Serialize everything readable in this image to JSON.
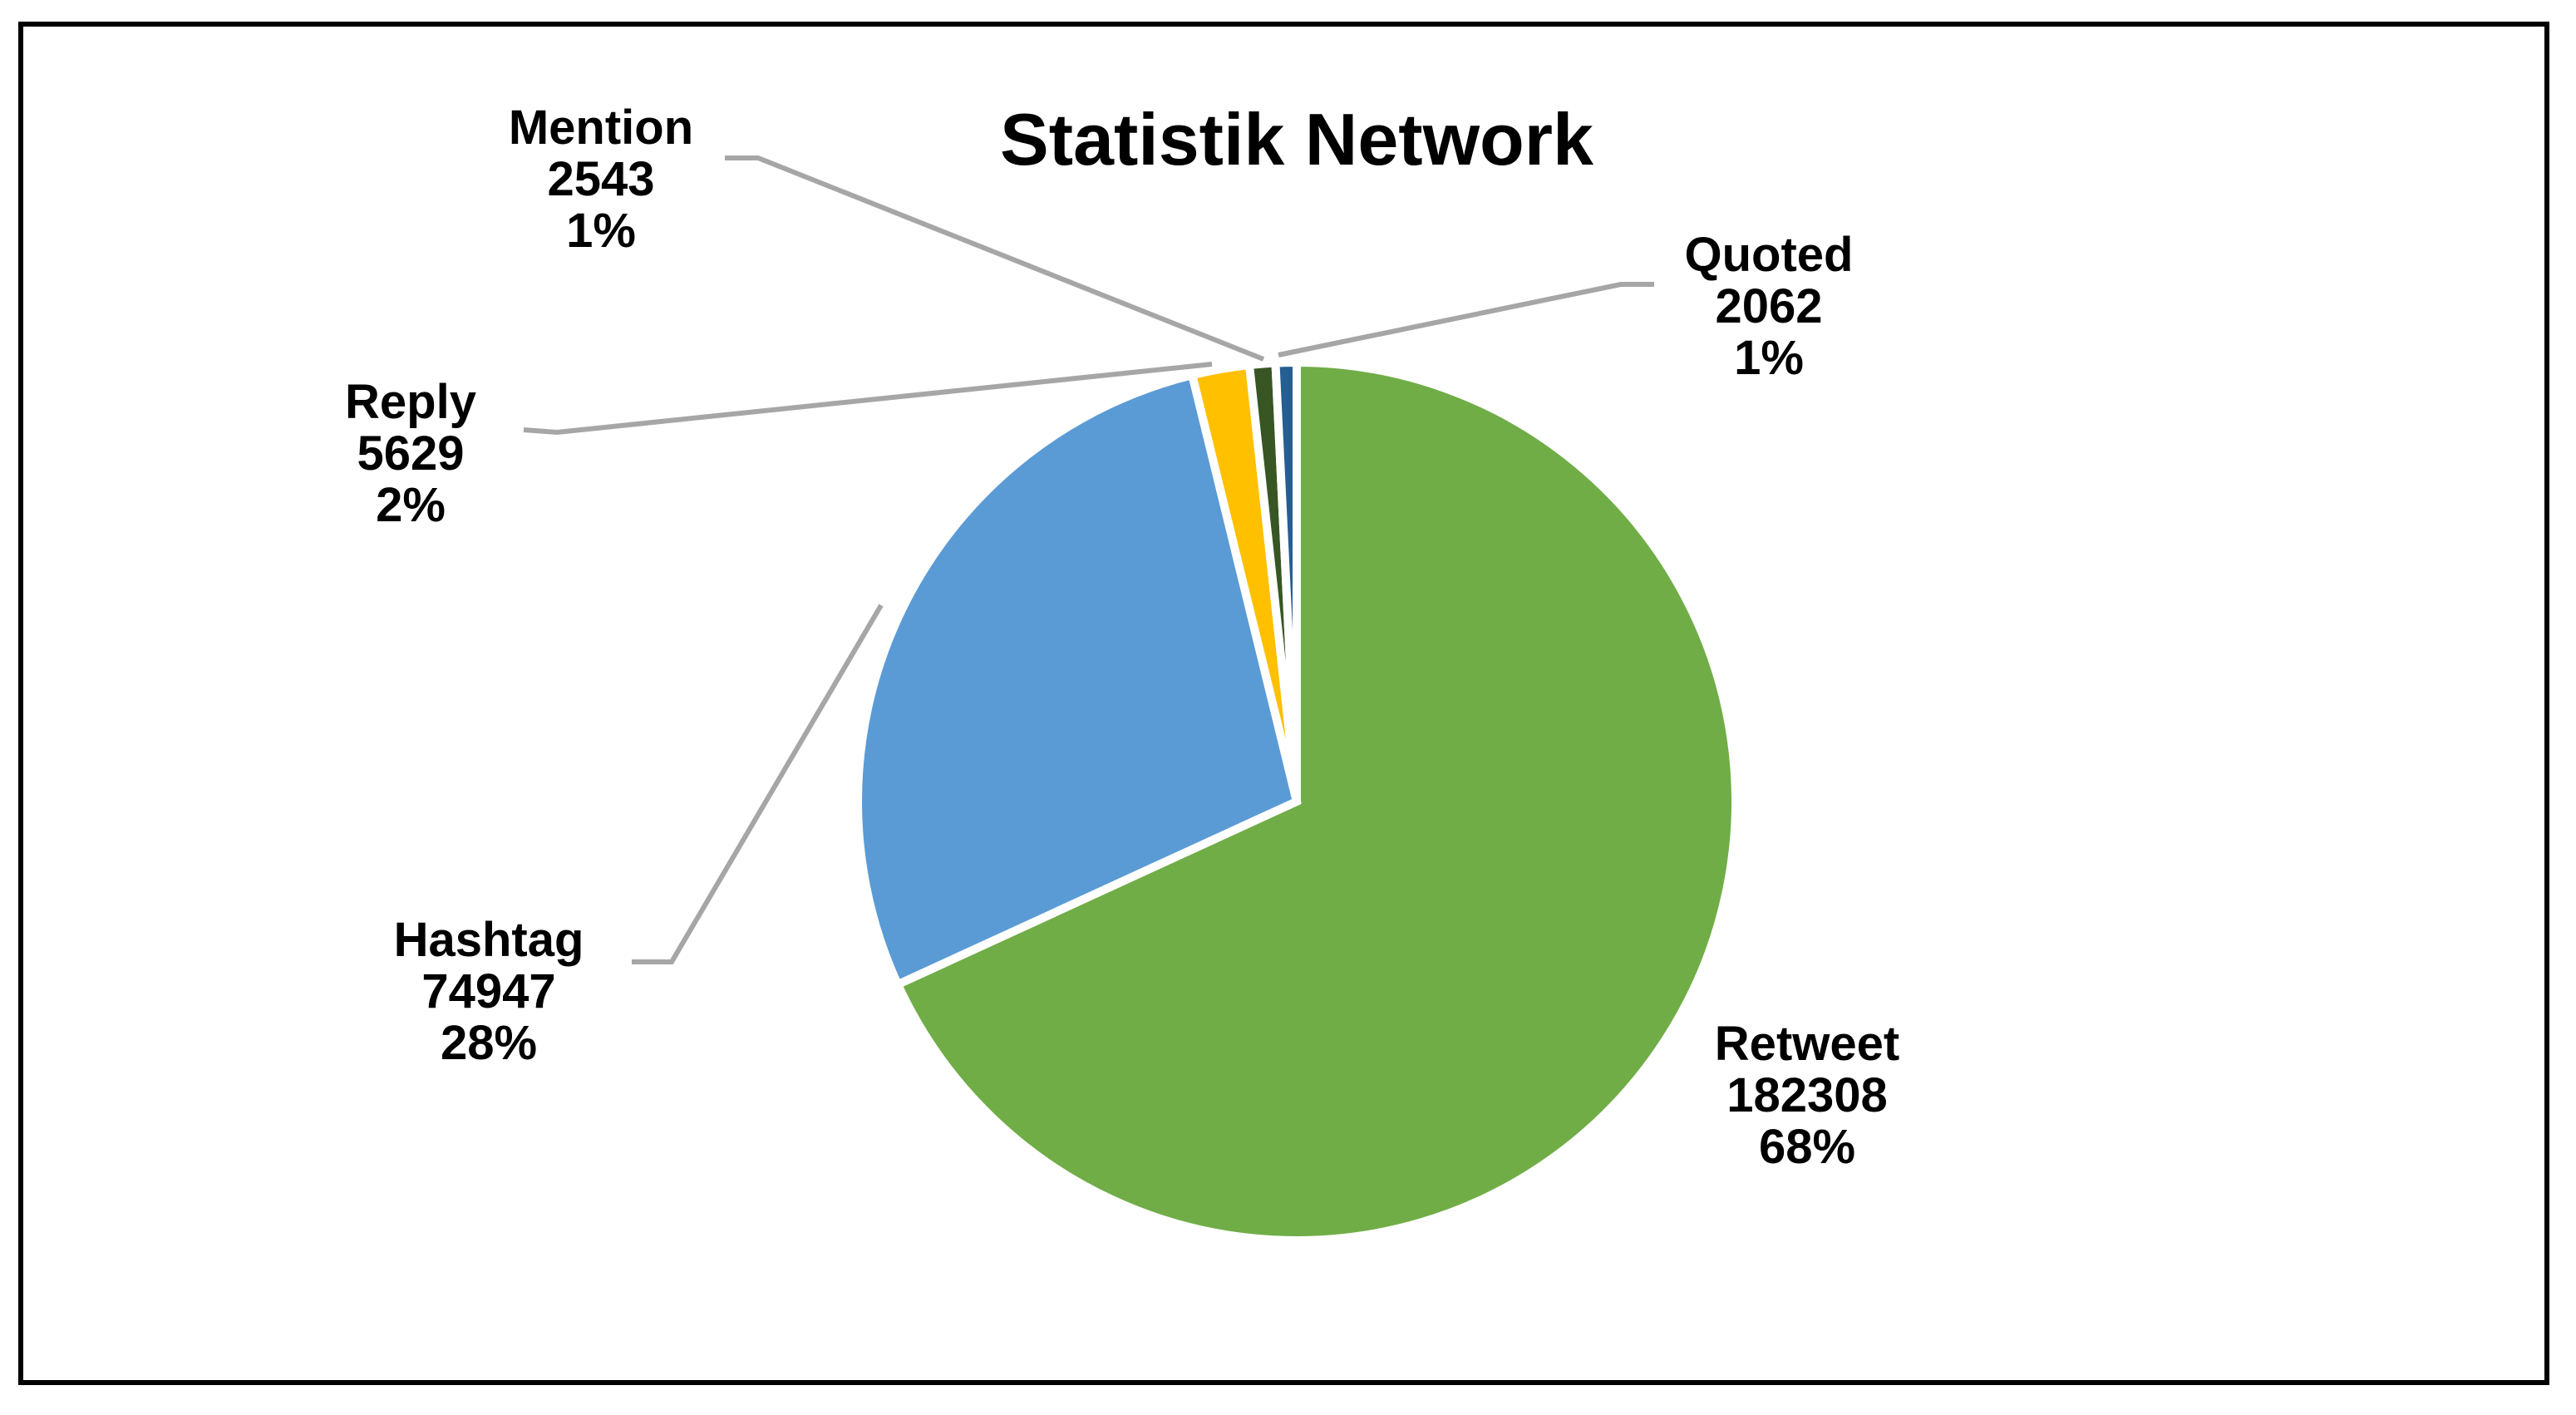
{
  "chart_data": {
    "type": "pie",
    "title": "Statistik Network",
    "categories": [
      "Retweet",
      "Hashtag",
      "Reply",
      "Mention",
      "Quoted"
    ],
    "values": [
      182308,
      74947,
      5629,
      2543,
      2062
    ],
    "percent_labels": [
      "68%",
      "28%",
      "2%",
      "1%",
      "1%"
    ],
    "value_labels": [
      "182308",
      "74947",
      "5629",
      "2543",
      "2062"
    ],
    "colors": [
      "#70ad47",
      "#5b9bd5",
      "#ffc000",
      "#375623",
      "#255e91"
    ],
    "start_angle_deg": 0,
    "direction": "clockwise",
    "legend": "none"
  }
}
